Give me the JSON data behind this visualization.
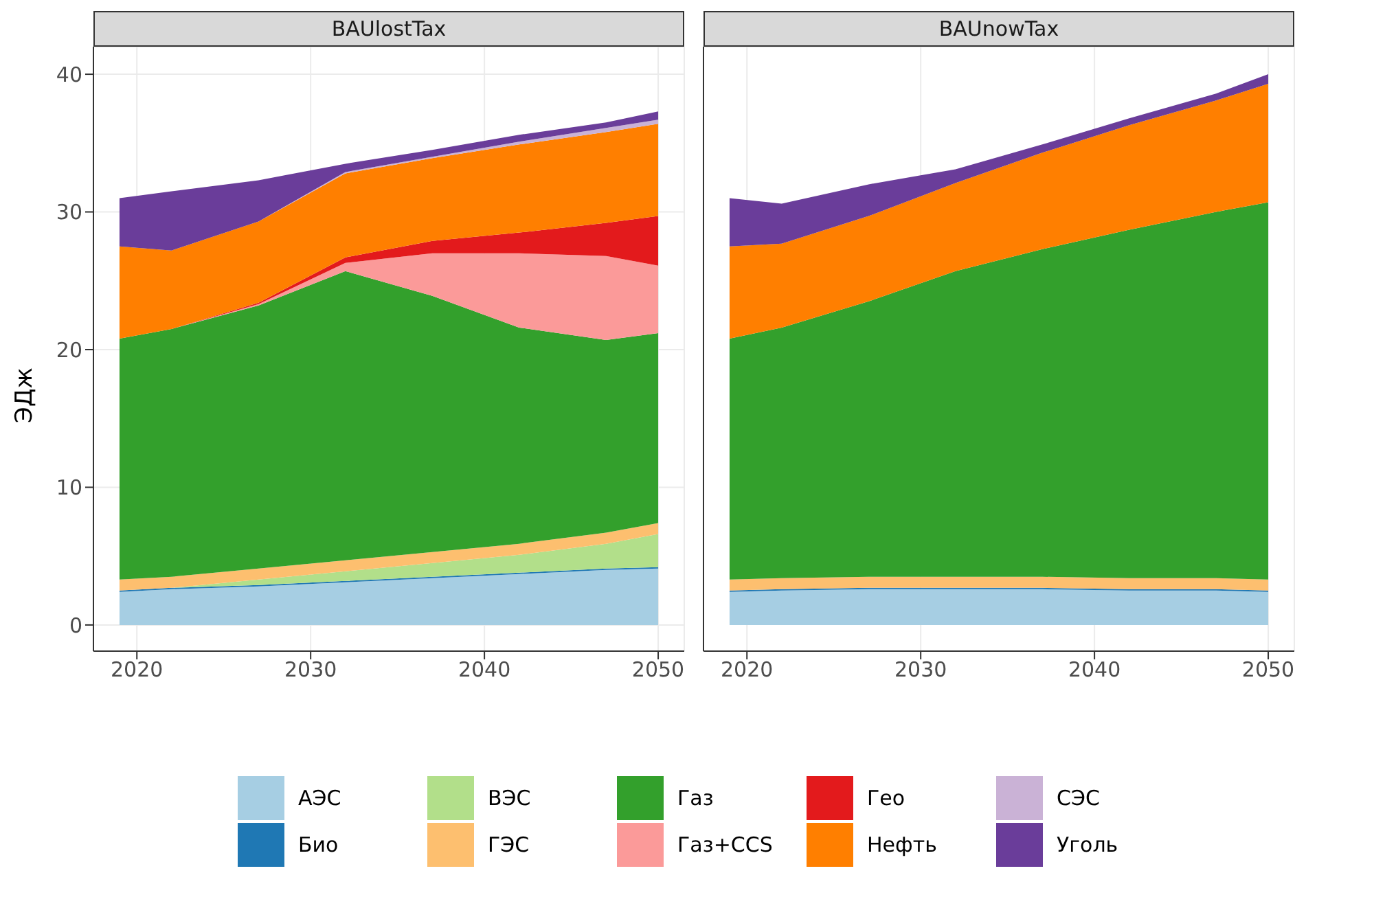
{
  "chart_data": [
    {
      "type": "area",
      "title": "BAUlostTax",
      "ylabel": "ЭДж",
      "stacked": true,
      "x": [
        2019,
        2022,
        2027,
        2032,
        2037,
        2042,
        2047,
        2050
      ],
      "xlim": [
        2017.5,
        2051.5
      ],
      "xticks": [
        2020,
        2030,
        2040,
        2050
      ],
      "ylim": [
        -1.9,
        42
      ],
      "yticks": [
        0,
        10,
        20,
        30,
        40
      ],
      "grid": true,
      "legend": "bottom",
      "series": [
        {
          "name": "АЭС",
          "color": "#a6cee3",
          "values": [
            2.4,
            2.6,
            2.8,
            3.1,
            3.4,
            3.7,
            4.0,
            4.1
          ]
        },
        {
          "name": "Био",
          "color": "#1f78b4",
          "values": [
            0.1,
            0.1,
            0.1,
            0.1,
            0.1,
            0.1,
            0.1,
            0.1
          ]
        },
        {
          "name": "ВЭС",
          "color": "#b2df8a",
          "values": [
            0,
            0,
            0.4,
            0.7,
            1.0,
            1.3,
            1.8,
            2.4
          ]
        },
        {
          "name": "ГЭС",
          "color": "#fdbf6f",
          "values": [
            0.8,
            0.8,
            0.8,
            0.8,
            0.8,
            0.8,
            0.8,
            0.8
          ]
        },
        {
          "name": "Газ",
          "color": "#33a02c",
          "values": [
            17.5,
            18.0,
            19.1,
            21.0,
            18.6,
            15.7,
            14.0,
            13.8
          ]
        },
        {
          "name": "Газ+CCS",
          "color": "#fb9a99",
          "values": [
            0,
            0,
            0.1,
            0.6,
            3.1,
            5.4,
            6.1,
            4.9
          ]
        },
        {
          "name": "Гео",
          "color": "#e31a1c",
          "values": [
            0,
            0,
            0.1,
            0.4,
            0.9,
            1.5,
            2.4,
            3.6
          ]
        },
        {
          "name": "Нефть",
          "color": "#ff7f00",
          "values": [
            6.7,
            5.7,
            5.9,
            6.1,
            6.0,
            6.4,
            6.6,
            6.7
          ]
        },
        {
          "name": "СЭС",
          "color": "#cab2d6",
          "values": [
            0,
            0,
            0,
            0.1,
            0.1,
            0.2,
            0.3,
            0.3
          ]
        },
        {
          "name": "Уголь",
          "color": "#6a3d9a",
          "values": [
            3.5,
            4.3,
            3.0,
            0.6,
            0.5,
            0.5,
            0.4,
            0.6
          ]
        }
      ]
    },
    {
      "type": "area",
      "title": "BAUnowTax",
      "stacked": true,
      "x": [
        2019,
        2022,
        2027,
        2032,
        2037,
        2042,
        2047,
        2050
      ],
      "xlim": [
        2017.5,
        2051.5
      ],
      "xticks": [
        2020,
        2030,
        2040,
        2050
      ],
      "ylim": [
        -1.9,
        42
      ],
      "yticks": [
        0,
        10,
        20,
        30,
        40
      ],
      "grid": true,
      "tick_labels": "x",
      "series": [
        {
          "color": "#a6cee3",
          "values": [
            2.4,
            2.5,
            2.6,
            2.6,
            2.6,
            2.5,
            2.5,
            2.4
          ]
        },
        {
          "color": "#1f78b4",
          "values": [
            0.1,
            0.1,
            0.1,
            0.1,
            0.1,
            0.1,
            0.1,
            0.1
          ]
        },
        {
          "color": "#fdbf6f",
          "values": [
            0.8,
            0.8,
            0.8,
            0.8,
            0.8,
            0.8,
            0.8,
            0.8
          ]
        },
        {
          "color": "#33a02c",
          "values": [
            17.5,
            18.2,
            20.0,
            22.2,
            23.8,
            25.3,
            26.6,
            27.4
          ]
        },
        {
          "color": "#ff7f00",
          "values": [
            6.7,
            6.1,
            6.2,
            6.4,
            7.0,
            7.6,
            8.1,
            8.6
          ]
        },
        {
          "color": "#6a3d9a",
          "values": [
            3.5,
            2.9,
            2.3,
            1.0,
            0.6,
            0.5,
            0.5,
            0.7
          ]
        }
      ]
    }
  ]
}
